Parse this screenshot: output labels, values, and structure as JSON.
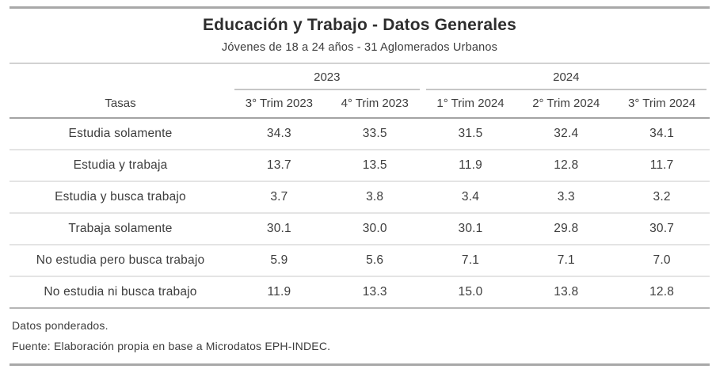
{
  "chart_data": {
    "type": "table",
    "title": "Educación y Trabajo - Datos Generales",
    "subtitle": "Jóvenes de 18 a 24 años - 31 Aglomerados Urbanos",
    "stub_header": "Tasas",
    "column_groups": [
      {
        "label": "2023",
        "span": 2
      },
      {
        "label": "2024",
        "span": 3
      }
    ],
    "columns": [
      "3° Trim 2023",
      "4° Trim 2023",
      "1° Trim 2024",
      "2° Trim 2024",
      "3° Trim 2024"
    ],
    "rows": [
      {
        "label": "Estudia solamente",
        "values": [
          "34.3",
          "33.5",
          "31.5",
          "32.4",
          "34.1"
        ]
      },
      {
        "label": "Estudia y trabaja",
        "values": [
          "13.7",
          "13.5",
          "11.9",
          "12.8",
          "11.7"
        ]
      },
      {
        "label": "Estudia y busca trabajo",
        "values": [
          "3.7",
          "3.8",
          "3.4",
          "3.3",
          "3.2"
        ]
      },
      {
        "label": "Trabaja solamente",
        "values": [
          "30.1",
          "30.0",
          "30.1",
          "29.8",
          "30.7"
        ]
      },
      {
        "label": "No estudia pero busca trabajo",
        "values": [
          "5.9",
          "5.6",
          "7.1",
          "7.1",
          "7.0"
        ]
      },
      {
        "label": "No estudia ni busca trabajo",
        "values": [
          "11.9",
          "13.3",
          "15.0",
          "13.8",
          "12.8"
        ]
      }
    ],
    "notes": {
      "weighting": "Datos ponderados.",
      "source": "Fuente: Elaboración propia en base a Microdatos EPH-INDEC."
    },
    "colors": {
      "text": "#3d3d3d",
      "title": "#2d2d2d",
      "rule_strong": "#a8a8a8",
      "rule_header": "#a3a3a3",
      "rule_group": "#c6c6c6",
      "rule_footer": "#b5b5b5",
      "rule_row": "#e4e4e4"
    },
    "layout": {
      "grid": "off",
      "header_groups": "underlined",
      "value_align": "center"
    }
  }
}
